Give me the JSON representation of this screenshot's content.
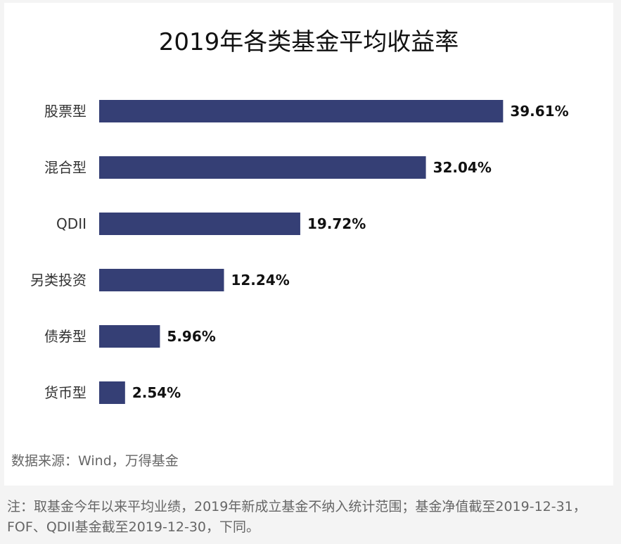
{
  "chart_data": {
    "type": "bar",
    "orientation": "horizontal",
    "title": "2019年各类基金平均收益率",
    "xlabel": "",
    "ylabel": "",
    "xlim": [
      0,
      40
    ],
    "grid": false,
    "bar_color": "#353f75",
    "categories": [
      "股票型",
      "混合型",
      "QDII",
      "另类投资",
      "债券型",
      "货币型"
    ],
    "values": [
      39.61,
      32.04,
      19.72,
      12.24,
      5.96,
      2.54
    ],
    "value_labels": [
      "39.61%",
      "32.04%",
      "19.72%",
      "12.24%",
      "5.96%",
      "2.54%"
    ]
  },
  "source": "数据来源：Wind，万得基金",
  "note": "注：取基金今年以来平均业绩，2019年新成立基金不纳入统计范围；基金净值截至2019-12-31，FOF、QDII基金截至2019-12-30，下同。"
}
